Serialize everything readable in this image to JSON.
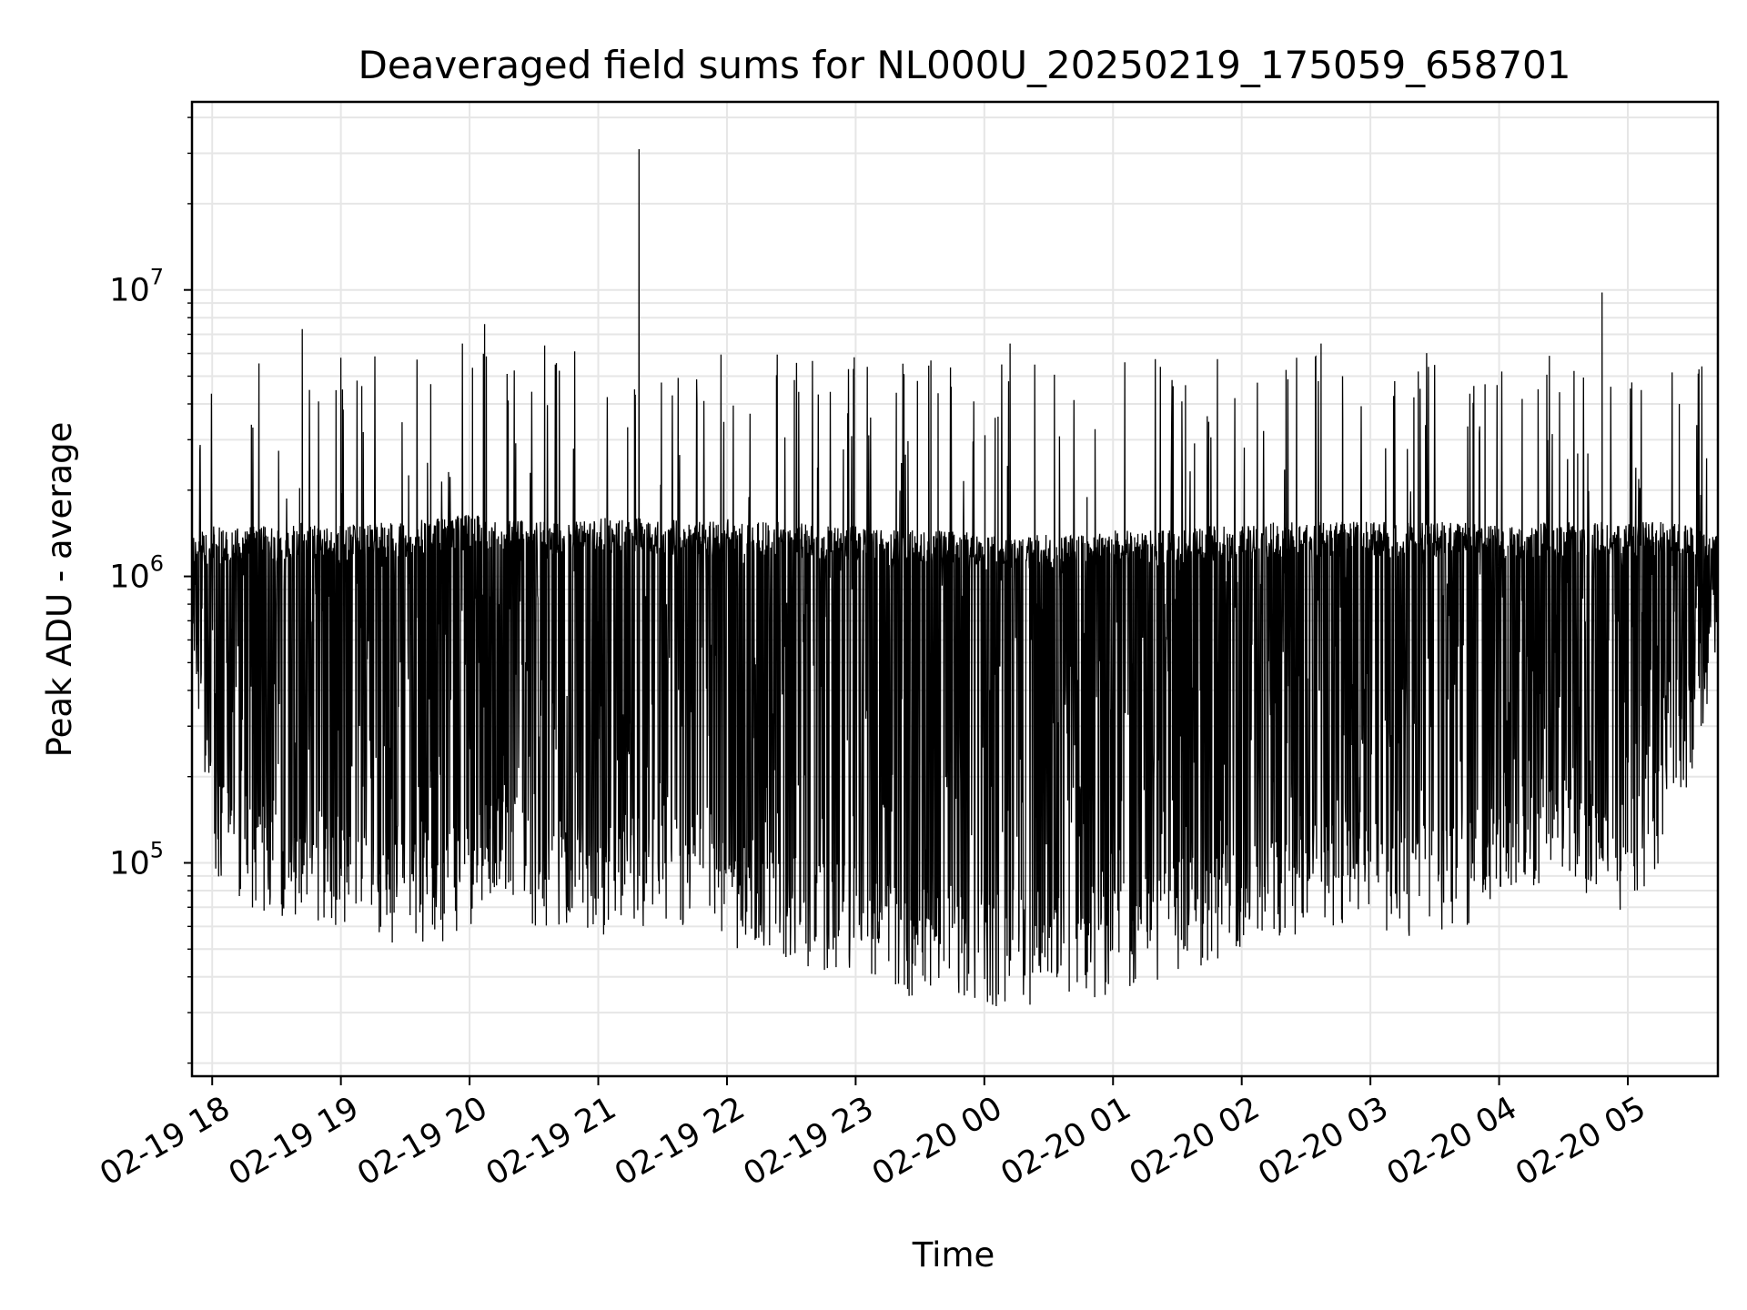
{
  "chart_data": {
    "type": "line",
    "title": "Deaveraged field sums for NL000U_20250219_175059_658701",
    "xlabel": "Time",
    "ylabel": "Peak ADU - average",
    "yscale": "log",
    "ylim": [
      18000,
      45000000
    ],
    "xlim": [
      "2025-02-19 17:51",
      "2025-02-20 05:42"
    ],
    "grid": true,
    "line_color": "#000000",
    "grid_color": "#e6e6e6",
    "x_ticks": [
      {
        "label": "02-19 18",
        "time": "2025-02-19 18:00"
      },
      {
        "label": "02-19 19",
        "time": "2025-02-19 19:00"
      },
      {
        "label": "02-19 20",
        "time": "2025-02-19 20:00"
      },
      {
        "label": "02-19 21",
        "time": "2025-02-19 21:00"
      },
      {
        "label": "02-19 22",
        "time": "2025-02-19 22:00"
      },
      {
        "label": "02-19 23",
        "time": "2025-02-19 23:00"
      },
      {
        "label": "02-20 00",
        "time": "2025-02-20 00:00"
      },
      {
        "label": "02-20 01",
        "time": "2025-02-20 01:00"
      },
      {
        "label": "02-20 02",
        "time": "2025-02-20 02:00"
      },
      {
        "label": "02-20 03",
        "time": "2025-02-20 03:00"
      },
      {
        "label": "02-20 04",
        "time": "2025-02-20 04:00"
      },
      {
        "label": "02-20 05",
        "time": "2025-02-20 05:00"
      }
    ],
    "y_ticks": [
      {
        "base": "10",
        "exp": "5",
        "value": 100000
      },
      {
        "base": "10",
        "exp": "6",
        "value": 1000000
      },
      {
        "base": "10",
        "exp": "7",
        "value": 10000000
      }
    ],
    "series": [
      {
        "x": [
          "2025-02-19 17:51",
          "2025-02-19 18:00",
          "2025-02-19 18:15",
          "2025-02-19 18:30",
          "2025-02-19 18:45",
          "2025-02-19 19:00",
          "2025-02-19 19:15",
          "2025-02-19 19:30",
          "2025-02-19 19:45",
          "2025-02-19 20:00",
          "2025-02-19 20:15",
          "2025-02-19 20:30",
          "2025-02-19 20:45",
          "2025-02-19 21:00",
          "2025-02-19 21:15",
          "2025-02-19 21:30",
          "2025-02-19 21:45",
          "2025-02-19 22:00",
          "2025-02-19 22:15",
          "2025-02-19 22:30",
          "2025-02-19 22:45",
          "2025-02-19 23:00",
          "2025-02-19 23:15",
          "2025-02-19 23:30",
          "2025-02-19 23:45",
          "2025-02-20 00:00",
          "2025-02-20 00:15",
          "2025-02-20 00:30",
          "2025-02-20 00:45",
          "2025-02-20 01:00",
          "2025-02-20 01:15",
          "2025-02-20 01:30",
          "2025-02-20 01:45",
          "2025-02-20 02:00",
          "2025-02-20 02:15",
          "2025-02-20 02:30",
          "2025-02-20 02:45",
          "2025-02-20 03:00",
          "2025-02-20 03:15",
          "2025-02-20 03:30",
          "2025-02-20 03:45",
          "2025-02-20 04:00",
          "2025-02-20 04:15",
          "2025-02-20 04:30",
          "2025-02-20 04:45",
          "2025-02-20 05:00",
          "2025-02-20 05:15",
          "2025-02-20 05:30",
          "2025-02-20 05:42"
        ],
        "low": [
          500000,
          90000,
          70000,
          65000,
          60000,
          60000,
          55000,
          50000,
          52000,
          60000,
          80000,
          60000,
          55000,
          55000,
          60000,
          60000,
          55000,
          50000,
          50000,
          45000,
          40000,
          40000,
          35000,
          32000,
          30000,
          32000,
          30000,
          32000,
          33000,
          35000,
          38000,
          40000,
          45000,
          50000,
          55000,
          55000,
          60000,
          60000,
          55000,
          55000,
          60000,
          70000,
          80000,
          90000,
          70000,
          65000,
          100000,
          200000,
          500000
        ],
        "high": [
          1400000,
          1500000,
          1500000,
          1500000,
          1550000,
          1500000,
          1550000,
          1550000,
          1600000,
          1650000,
          1600000,
          1550000,
          1550000,
          1600000,
          1600000,
          1600000,
          1550000,
          1600000,
          1550000,
          1550000,
          1500000,
          1500000,
          1450000,
          1450000,
          1450000,
          1400000,
          1400000,
          1400000,
          1400000,
          1450000,
          1450000,
          1450000,
          1500000,
          1500000,
          1550000,
          1550000,
          1550000,
          1550000,
          1550000,
          1550000,
          1550000,
          1500000,
          1550000,
          1550000,
          1550000,
          1550000,
          1550000,
          1500000,
          1400000
        ],
        "peaks": [
          {
            "time": "2025-02-19 18:42",
            "value": 7300000
          },
          {
            "time": "2025-02-19 19:00",
            "value": 5800000
          },
          {
            "time": "2025-02-19 20:07",
            "value": 7600000
          },
          {
            "time": "2025-02-19 20:35",
            "value": 6400000
          },
          {
            "time": "2025-02-19 20:49",
            "value": 6100000
          },
          {
            "time": "2025-02-19 21:19",
            "value": 31000000
          },
          {
            "time": "2025-02-19 22:59",
            "value": 5300000
          },
          {
            "time": "2025-02-20 00:12",
            "value": 6500000
          },
          {
            "time": "2025-02-20 02:37",
            "value": 6500000
          },
          {
            "time": "2025-02-20 02:47",
            "value": 5000000
          },
          {
            "time": "2025-02-20 04:48",
            "value": 9800000
          },
          {
            "time": "2025-02-20 05:24",
            "value": 4000000
          }
        ]
      }
    ]
  }
}
